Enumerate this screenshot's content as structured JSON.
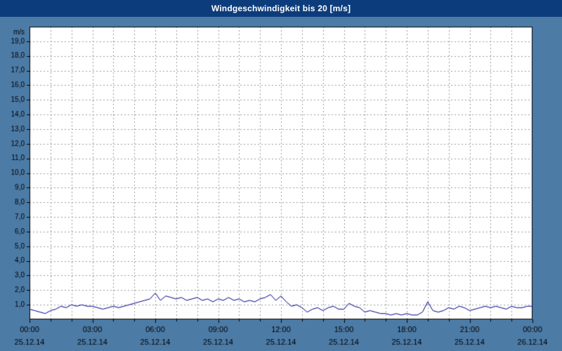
{
  "title": "Windgeschwindigkeit bis 20 [m/s]",
  "colors": {
    "title_bar": "#0d3c7c",
    "title_text": "#ffffff",
    "window_background": "#4c7ba6",
    "plot_background": "#ffffff",
    "grid": "#999999",
    "axis": "#000000",
    "line": "#00008b",
    "label_text": "#000000"
  },
  "chart_data": {
    "type": "line",
    "title": "Windgeschwindigkeit bis 20 [m/s]",
    "xlabel": "",
    "ylabel": "m/s",
    "ylim": [
      0,
      20
    ],
    "ytick_step": 1,
    "ytick_labels_top_to_bottom": [
      "19,0",
      "18,0",
      "17,0",
      "16,0",
      "15,0",
      "14,0",
      "13,0",
      "12,0",
      "11,0",
      "10,0",
      "9,0",
      "8,0",
      "7,0",
      "6,0",
      "5,0",
      "4,0",
      "3,0",
      "2,0",
      "1,0"
    ],
    "x_total_hours": 24,
    "x_minor_grid_step_hours": 1,
    "x_major_tick_step_hours": 3,
    "xticks": [
      {
        "time": "00:00",
        "date": "25.12.14"
      },
      {
        "time": "03:00",
        "date": "25.12.14"
      },
      {
        "time": "06:00",
        "date": "25.12.14"
      },
      {
        "time": "09:00",
        "date": "25.12.14"
      },
      {
        "time": "12:00",
        "date": "25.12.14"
      },
      {
        "time": "15:00",
        "date": "25.12.14"
      },
      {
        "time": "18:00",
        "date": "25.12.14"
      },
      {
        "time": "21:00",
        "date": "25.12.14"
      },
      {
        "time": "00:00",
        "date": "26.12.14"
      }
    ],
    "grid": "dashed gray, vertical every hour, horizontal every 1 m/s",
    "legend": "none",
    "series": [
      {
        "name": "Windgeschwindigkeit",
        "color": "#00008b",
        "interval_minutes": 15,
        "start": "25.12.14 00:00",
        "unit": "m/s",
        "values": [
          0.7,
          0.6,
          0.5,
          0.4,
          0.6,
          0.7,
          0.9,
          0.8,
          1.0,
          0.9,
          1.0,
          0.9,
          0.9,
          0.8,
          0.7,
          0.8,
          0.9,
          0.8,
          0.9,
          1.0,
          1.1,
          1.2,
          1.3,
          1.4,
          1.8,
          1.3,
          1.6,
          1.5,
          1.4,
          1.5,
          1.3,
          1.4,
          1.5,
          1.3,
          1.4,
          1.2,
          1.4,
          1.3,
          1.5,
          1.3,
          1.4,
          1.2,
          1.3,
          1.2,
          1.4,
          1.5,
          1.7,
          1.3,
          1.6,
          1.2,
          0.9,
          1.0,
          0.8,
          0.5,
          0.7,
          0.8,
          0.6,
          0.8,
          0.9,
          0.7,
          0.7,
          1.1,
          0.9,
          0.8,
          0.5,
          0.6,
          0.5,
          0.4,
          0.4,
          0.3,
          0.4,
          0.3,
          0.4,
          0.3,
          0.3,
          0.5,
          1.2,
          0.6,
          0.5,
          0.6,
          0.8,
          0.7,
          0.9,
          0.8,
          0.6,
          0.7,
          0.8,
          0.9,
          0.8,
          0.9,
          0.8,
          0.7,
          0.9,
          0.8,
          0.8,
          0.9,
          0.9
        ]
      }
    ]
  }
}
